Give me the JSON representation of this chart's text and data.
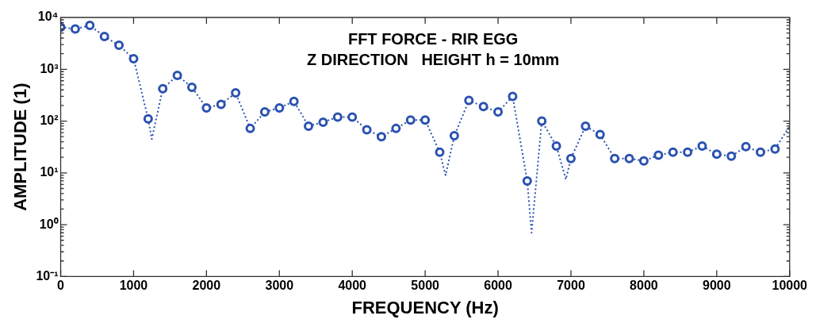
{
  "chart_data": {
    "type": "line",
    "title": "FFT FORCE - RIR EGG",
    "subtitle": "Z DIRECTION   HEIGHT h = 10mm",
    "xlabel": "FREQUENCY (Hz)",
    "ylabel": "AMPLITUDE (1)",
    "xlim": [
      0,
      10000
    ],
    "xticks": [
      0,
      1000,
      2000,
      3000,
      4000,
      5000,
      6000,
      7000,
      8000,
      9000,
      10000
    ],
    "ylim": [
      0.1,
      10000
    ],
    "yticks": [
      {
        "value": 0.1,
        "label": "10⁻¹"
      },
      {
        "value": 1,
        "label": "10⁰"
      },
      {
        "value": 10,
        "label": "10¹"
      },
      {
        "value": 100,
        "label": "10²"
      },
      {
        "value": 1000,
        "label": "10³"
      },
      {
        "value": 10000,
        "label": "10⁴"
      }
    ],
    "log": "y",
    "grid": false,
    "legend": false,
    "series": [
      {
        "color": "#2a52b0",
        "marker": "none",
        "line_style": "dotted",
        "x": [
          0,
          200,
          400,
          600,
          800,
          1000,
          1200,
          1250,
          1400,
          1600,
          1800,
          2000,
          2200,
          2400,
          2600,
          2800,
          3000,
          3200,
          3400,
          3600,
          3800,
          4000,
          4200,
          4400,
          4600,
          4800,
          5000,
          5200,
          5280,
          5400,
          5600,
          5800,
          6000,
          6200,
          6400,
          6460,
          6600,
          6800,
          6930,
          7000,
          7200,
          7400,
          7600,
          7800,
          8000,
          8200,
          8400,
          8600,
          8800,
          9000,
          9200,
          9400,
          9600,
          9800,
          10000
        ],
        "values": [
          6500,
          6000,
          7000,
          4300,
          2900,
          1600,
          110,
          45,
          420,
          760,
          450,
          180,
          210,
          350,
          72,
          150,
          180,
          240,
          80,
          95,
          120,
          120,
          68,
          50,
          72,
          105,
          105,
          25,
          9,
          52,
          250,
          190,
          150,
          300,
          7,
          0.7,
          100,
          33,
          7.5,
          19,
          80,
          55,
          19,
          19,
          17,
          22,
          25,
          25,
          33,
          23,
          21,
          32,
          25,
          29,
          80
        ]
      },
      {
        "type": "scatter",
        "color": "#2a52b0",
        "marker": "circle",
        "x": [
          0,
          200,
          400,
          600,
          800,
          1000,
          1200,
          1400,
          1600,
          1800,
          2000,
          2200,
          2400,
          2600,
          2800,
          3000,
          3200,
          3400,
          3600,
          3800,
          4000,
          4200,
          4400,
          4600,
          4800,
          5000,
          5200,
          5400,
          5600,
          5800,
          6000,
          6200,
          6400,
          6600,
          6800,
          7000,
          7200,
          7400,
          7600,
          7800,
          8000,
          8200,
          8400,
          8600,
          8800,
          9000,
          9200,
          9400,
          9600,
          9800
        ],
        "values": [
          6500,
          6000,
          7000,
          4300,
          2900,
          1600,
          110,
          420,
          760,
          450,
          180,
          210,
          350,
          72,
          150,
          180,
          240,
          80,
          95,
          120,
          120,
          68,
          50,
          72,
          105,
          105,
          25,
          52,
          250,
          190,
          150,
          300,
          7,
          100,
          33,
          19,
          80,
          55,
          19,
          19,
          17,
          22,
          25,
          25,
          33,
          23,
          21,
          32,
          25,
          29
        ]
      }
    ]
  }
}
